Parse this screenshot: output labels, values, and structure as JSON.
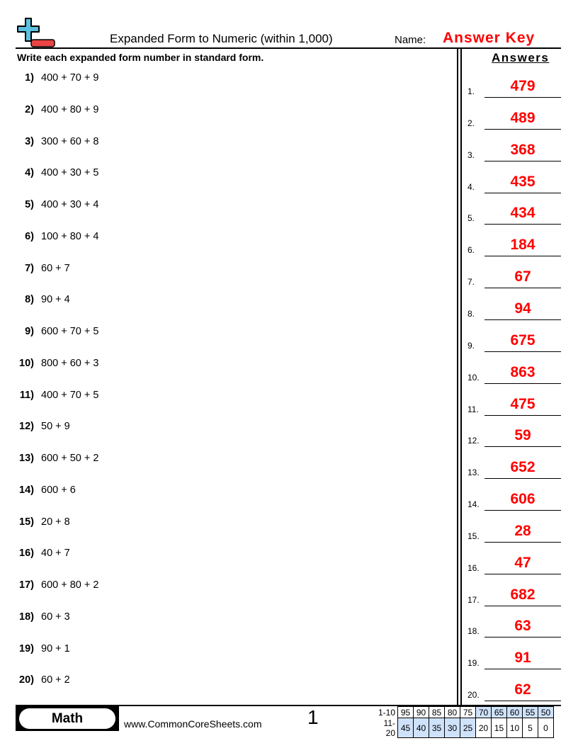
{
  "header": {
    "title": "Expanded Form to Numeric (within 1,000)",
    "name_label": "Name:",
    "name_value": "Answer Key",
    "logo_icon": "plus-minus-logo"
  },
  "instructions": "Write each expanded form number in standard form.",
  "answers_heading": "Answers",
  "problems": [
    {
      "num": "1)",
      "expr": "400 + 70 + 9",
      "label": "1.",
      "answer": "479"
    },
    {
      "num": "2)",
      "expr": "400 + 80 + 9",
      "label": "2.",
      "answer": "489"
    },
    {
      "num": "3)",
      "expr": "300 + 60 + 8",
      "label": "3.",
      "answer": "368"
    },
    {
      "num": "4)",
      "expr": "400 + 30 + 5",
      "label": "4.",
      "answer": "435"
    },
    {
      "num": "5)",
      "expr": "400 + 30 + 4",
      "label": "5.",
      "answer": "434"
    },
    {
      "num": "6)",
      "expr": "100 + 80 + 4",
      "label": "6.",
      "answer": "184"
    },
    {
      "num": "7)",
      "expr": "60 + 7",
      "label": "7.",
      "answer": "67"
    },
    {
      "num": "8)",
      "expr": "90 + 4",
      "label": "8.",
      "answer": "94"
    },
    {
      "num": "9)",
      "expr": "600 + 70 + 5",
      "label": "9.",
      "answer": "675"
    },
    {
      "num": "10)",
      "expr": "800 + 60 + 3",
      "label": "10.",
      "answer": "863"
    },
    {
      "num": "11)",
      "expr": "400 + 70 + 5",
      "label": "11.",
      "answer": "475"
    },
    {
      "num": "12)",
      "expr": "50 + 9",
      "label": "12.",
      "answer": "59"
    },
    {
      "num": "13)",
      "expr": "600 + 50 + 2",
      "label": "13.",
      "answer": "652"
    },
    {
      "num": "14)",
      "expr": "600 + 6",
      "label": "14.",
      "answer": "606"
    },
    {
      "num": "15)",
      "expr": "20 + 8",
      "label": "15.",
      "answer": "28"
    },
    {
      "num": "16)",
      "expr": "40 + 7",
      "label": "16.",
      "answer": "47"
    },
    {
      "num": "17)",
      "expr": "600 + 80 + 2",
      "label": "17.",
      "answer": "682"
    },
    {
      "num": "18)",
      "expr": "60 + 3",
      "label": "18.",
      "answer": "63"
    },
    {
      "num": "19)",
      "expr": "90 + 1",
      "label": "19.",
      "answer": "91"
    },
    {
      "num": "20)",
      "expr": "60 + 2",
      "label": "20.",
      "answer": "62"
    }
  ],
  "footer": {
    "subject": "Math",
    "website": "www.CommonCoreSheets.com",
    "page": "1",
    "score_rows": [
      {
        "label": "1-10",
        "cells": [
          "95",
          "90",
          "85",
          "80",
          "75",
          "70",
          "65",
          "60",
          "55",
          "50"
        ],
        "highlight_from": 5,
        "highlight_to": 9
      },
      {
        "label": "11-20",
        "cells": [
          "45",
          "40",
          "35",
          "30",
          "25",
          "20",
          "15",
          "10",
          "5",
          "0"
        ],
        "highlight_from": 0,
        "highlight_to": 4
      }
    ],
    "highlight_color": "#cfe2fb"
  },
  "colors": {
    "answer": "#ff0000",
    "logo_plus": "#5bc0e0",
    "logo_minus": "#e84545"
  }
}
